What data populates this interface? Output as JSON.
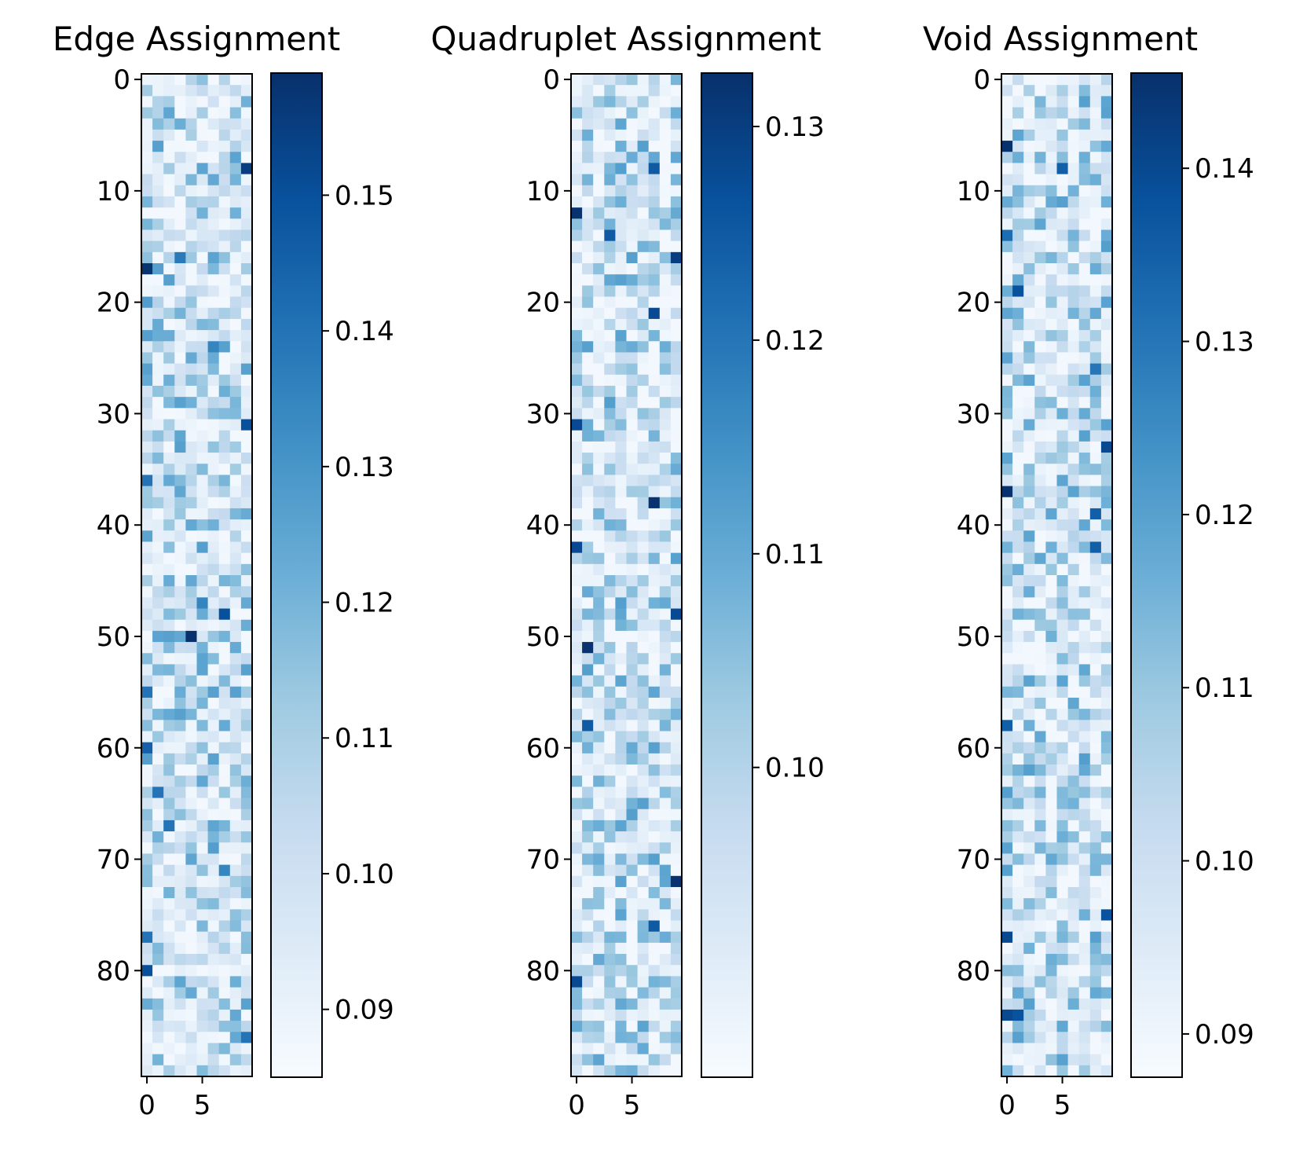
{
  "chart_data": [
    {
      "type": "heatmap",
      "title": "Edge Assignment",
      "rows": 90,
      "cols": 10,
      "colormap": "Blues",
      "value_range": [
        0.085,
        0.159
      ],
      "xticks": [
        0,
        5
      ],
      "yticks": [
        0,
        10,
        20,
        30,
        40,
        50,
        60,
        70,
        80
      ],
      "colorbar_ticks": [
        0.09,
        0.1,
        0.11,
        0.12,
        0.13,
        0.14,
        0.15
      ],
      "colorbar_tick_labels": [
        "0.09",
        "0.10",
        "0.11",
        "0.12",
        "0.13",
        "0.14",
        "0.15"
      ],
      "hot_cells": [
        [
          8,
          9,
          0.155
        ],
        [
          16,
          3,
          0.138
        ],
        [
          17,
          0,
          0.158
        ],
        [
          20,
          0,
          0.128
        ],
        [
          24,
          6,
          0.135
        ],
        [
          31,
          9,
          0.15
        ],
        [
          36,
          0,
          0.14
        ],
        [
          47,
          5,
          0.135
        ],
        [
          48,
          7,
          0.15
        ],
        [
          50,
          4,
          0.159
        ],
        [
          55,
          0,
          0.14
        ],
        [
          60,
          0,
          0.145
        ],
        [
          64,
          1,
          0.14
        ],
        [
          67,
          2,
          0.14
        ],
        [
          71,
          7,
          0.135
        ],
        [
          77,
          0,
          0.14
        ],
        [
          80,
          0,
          0.15
        ],
        [
          86,
          9,
          0.14
        ]
      ],
      "seed": 11
    },
    {
      "type": "heatmap",
      "title": "Quadruplet Assignment",
      "rows": 90,
      "cols": 10,
      "colormap": "Blues",
      "value_range": [
        0.0855,
        0.1325
      ],
      "xticks": [
        0,
        5
      ],
      "yticks": [
        0,
        10,
        20,
        30,
        40,
        50,
        60,
        70,
        80
      ],
      "colorbar_ticks": [
        0.1,
        0.11,
        0.12,
        0.13
      ],
      "colorbar_tick_labels": [
        "0.10",
        "0.11",
        "0.12",
        "0.13"
      ],
      "hot_cells": [
        [
          12,
          0,
          0.132
        ],
        [
          16,
          9,
          0.13
        ],
        [
          21,
          7,
          0.128
        ],
        [
          38,
          7,
          0.132
        ],
        [
          42,
          0,
          0.128
        ],
        [
          51,
          1,
          0.132
        ],
        [
          58,
          1,
          0.125
        ],
        [
          72,
          9,
          0.132
        ],
        [
          76,
          7,
          0.125
        ],
        [
          81,
          0,
          0.128
        ],
        [
          8,
          7,
          0.125
        ],
        [
          31,
          0,
          0.128
        ],
        [
          14,
          3,
          0.125
        ],
        [
          48,
          9,
          0.128
        ]
      ],
      "seed": 23
    },
    {
      "type": "heatmap",
      "title": "Void Assignment",
      "rows": 90,
      "cols": 10,
      "colormap": "Blues",
      "value_range": [
        0.0875,
        0.1455
      ],
      "xticks": [
        0,
        5
      ],
      "yticks": [
        0,
        10,
        20,
        30,
        40,
        50,
        60,
        70,
        80
      ],
      "colorbar_ticks": [
        0.09,
        0.1,
        0.11,
        0.12,
        0.13,
        0.14
      ],
      "colorbar_tick_labels": [
        "0.09",
        "0.10",
        "0.11",
        "0.12",
        "0.13",
        "0.14"
      ],
      "hot_cells": [
        [
          6,
          0,
          0.145
        ],
        [
          8,
          5,
          0.135
        ],
        [
          19,
          1,
          0.138
        ],
        [
          33,
          9,
          0.14
        ],
        [
          37,
          0,
          0.145
        ],
        [
          39,
          8,
          0.135
        ],
        [
          42,
          8,
          0.135
        ],
        [
          58,
          0,
          0.135
        ],
        [
          75,
          9,
          0.138
        ],
        [
          77,
          0,
          0.14
        ],
        [
          84,
          0,
          0.14
        ],
        [
          84,
          1,
          0.138
        ],
        [
          26,
          8,
          0.13
        ],
        [
          14,
          0,
          0.132
        ]
      ],
      "seed": 37
    }
  ]
}
